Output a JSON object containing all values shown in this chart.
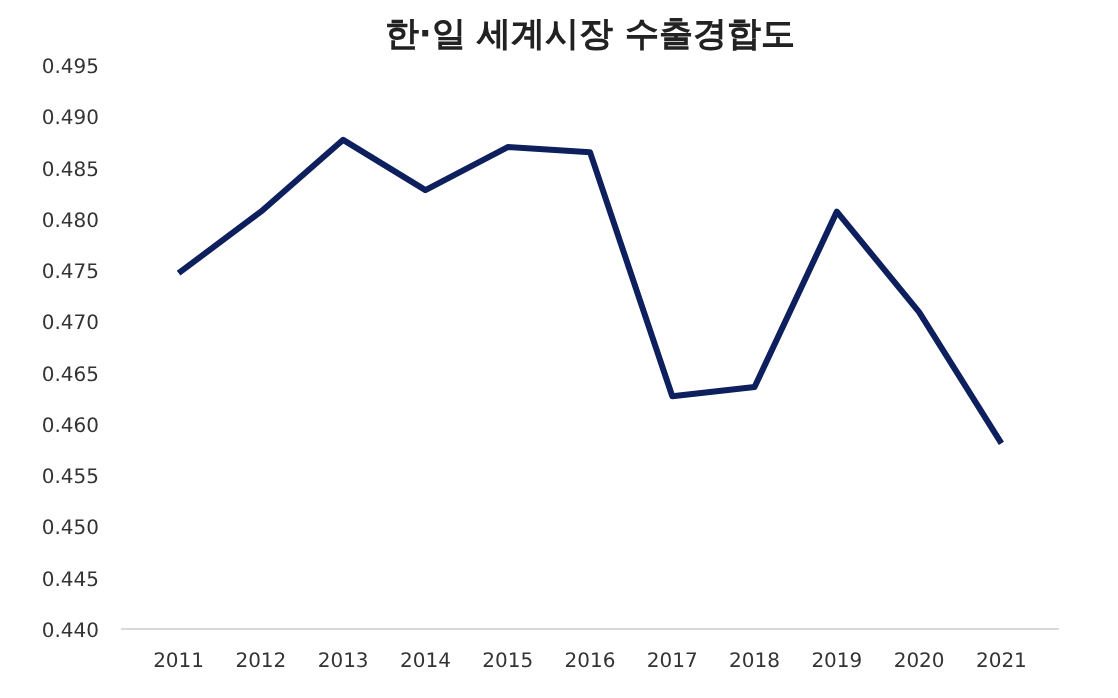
{
  "chart_data": {
    "type": "line",
    "title": "한·일 세계시장 수출경합도",
    "categories": [
      "2011",
      "2012",
      "2013",
      "2014",
      "2015",
      "2016",
      "2017",
      "2018",
      "2019",
      "2020",
      "2021"
    ],
    "series": [
      {
        "color": "#0d1f5c",
        "values": [
          0.4747,
          0.4807,
          0.4877,
          0.4828,
          0.487,
          0.4865,
          0.4627,
          0.4636,
          0.4807,
          0.4709,
          0.4581
        ]
      }
    ],
    "ylim": [
      0.44,
      0.495
    ],
    "yticks": [
      {
        "value": 0.44,
        "label": "0.440"
      },
      {
        "value": 0.445,
        "label": "0.445"
      },
      {
        "value": 0.45,
        "label": "0.450"
      },
      {
        "value": 0.455,
        "label": "0.455"
      },
      {
        "value": 0.46,
        "label": "0.460"
      },
      {
        "value": 0.465,
        "label": "0.465"
      },
      {
        "value": 0.47,
        "label": "0.470"
      },
      {
        "value": 0.475,
        "label": "0.475"
      },
      {
        "value": 0.48,
        "label": "0.480"
      },
      {
        "value": 0.485,
        "label": "0.485"
      },
      {
        "value": 0.49,
        "label": "0.490"
      },
      {
        "value": 0.495,
        "label": "0.495"
      }
    ],
    "grid": false,
    "marker": "none",
    "line_style": "solid"
  }
}
